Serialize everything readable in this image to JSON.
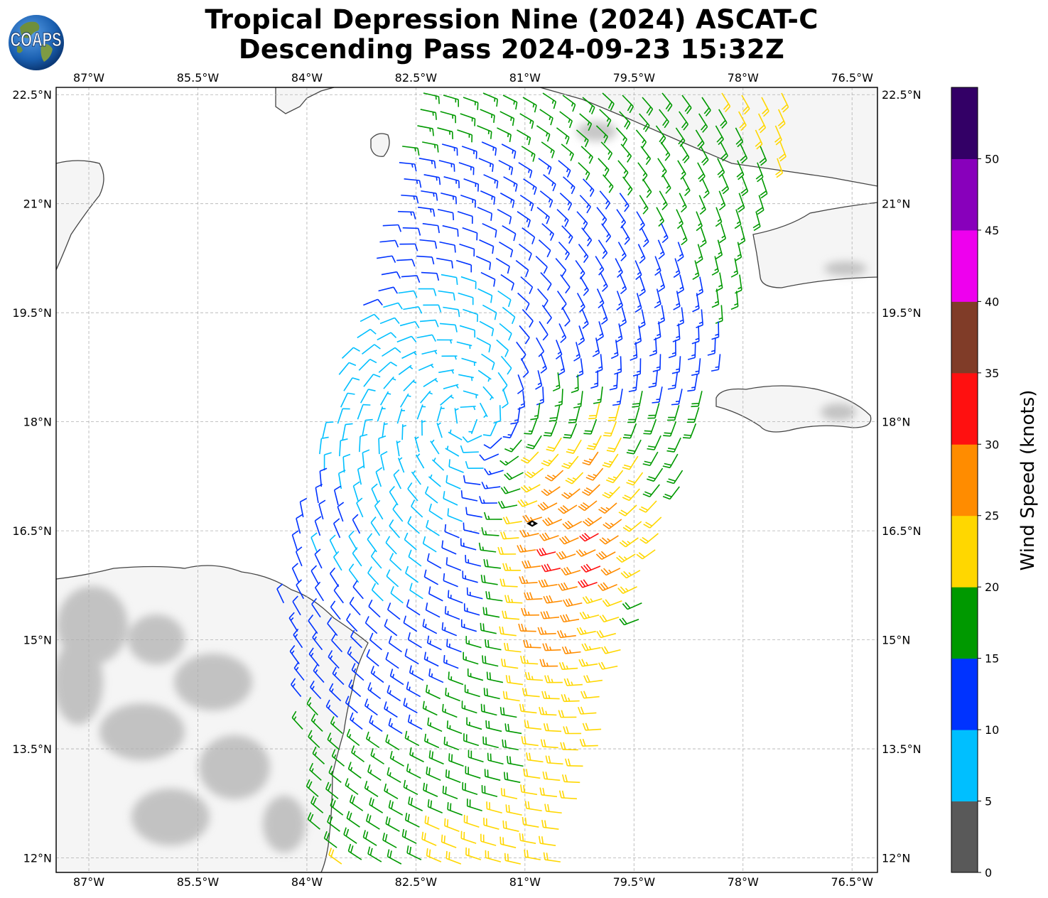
{
  "title": {
    "line1": "Tropical Depression Nine (2024) ASCAT-C",
    "line2": "Descending Pass 2024-09-23 15:32Z"
  },
  "logo": {
    "text": "COAPS",
    "icon": "globe-logo-icon"
  },
  "map": {
    "lon_labels": [
      "87°W",
      "85.5°W",
      "84°W",
      "82.5°W",
      "81°W",
      "79.5°W",
      "78°W",
      "76.5°W"
    ],
    "lat_labels": [
      "22.5°N",
      "21°N",
      "19.5°N",
      "18°N",
      "16.5°N",
      "15°N",
      "13.5°N",
      "12°N"
    ],
    "gridlines": true,
    "storm_center": {
      "lon": -80.9,
      "lat": 16.6,
      "icon": "storm-center-marker-icon"
    }
  },
  "colorbar": {
    "label": "Wind Speed (knots)",
    "ticks": [
      "0",
      "5",
      "10",
      "15",
      "20",
      "25",
      "30",
      "35",
      "40",
      "45",
      "50"
    ],
    "colors": [
      "#595959",
      "#00bfff",
      "#0033ff",
      "#009900",
      "#ffd700",
      "#ff8c00",
      "#ff1010",
      "#803c28",
      "#ee00ee",
      "#8800bb",
      "#330066"
    ]
  },
  "colors": {
    "land": "#f4f4f4",
    "coast": "#444444",
    "grid": "#b0b0b0"
  }
}
